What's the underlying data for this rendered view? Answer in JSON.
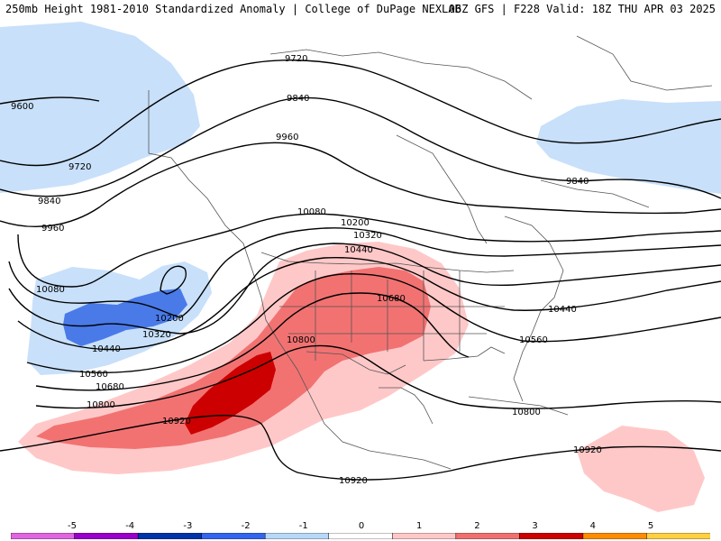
{
  "header": {
    "title": "250mb Height 1981-2010 Standardized Anomaly | College of DuPage NEXLAB",
    "run_info": "06Z GFS | F228 Valid: 18Z THU APR 03 2025"
  },
  "contour_labels": [
    "9600",
    "9720",
    "9720",
    "9840",
    "9840",
    "9840",
    "9960",
    "9960",
    "10080",
    "10080",
    "10200",
    "10200",
    "10320",
    "10320",
    "10440",
    "10440",
    "10560",
    "10560",
    "10680",
    "10680",
    "10800",
    "10800",
    "10800",
    "10920",
    "10920",
    "10920"
  ],
  "legend": {
    "ticks": [
      "-5",
      "-4",
      "-3",
      "-2",
      "-1",
      "0",
      "1",
      "2",
      "3",
      "4",
      "5"
    ],
    "colors": [
      "#e066e0",
      "#9900cc",
      "#0033aa",
      "#3366ee",
      "#b8d8f8",
      "#ffffff",
      "#ffc8c8",
      "#f07070",
      "#cc0000",
      "#ff8c00",
      "#ffd040"
    ]
  },
  "colors": {
    "anomaly_neg_1": "#c8e0fa",
    "anomaly_neg_2": "#4a7ae8",
    "anomaly_pos_1": "#ffc8c8",
    "anomaly_pos_2": "#f27272",
    "anomaly_pos_3": "#cc0000",
    "contour": "#000000",
    "borders": "#444444"
  }
}
